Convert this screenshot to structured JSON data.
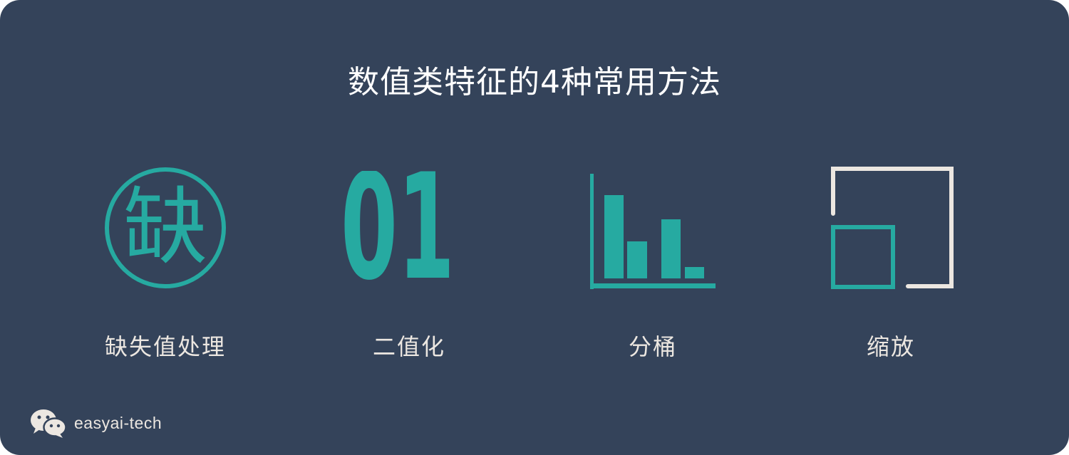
{
  "title": "数值类特征的4种常用方法",
  "colors": {
    "background": "#34435a",
    "accent": "#26aaa1",
    "light": "#ece7e1"
  },
  "methods": [
    {
      "label": "缺失值处理",
      "icon": "missing-value-icon",
      "glyph": "缺"
    },
    {
      "label": "二值化",
      "icon": "binary-01-icon",
      "glyph": "01"
    },
    {
      "label": "分桶",
      "icon": "bar-chart-icon"
    },
    {
      "label": "缩放",
      "icon": "scale-squares-icon"
    }
  ],
  "footer": {
    "icon": "wechat-icon",
    "text": "easyai-tech"
  }
}
